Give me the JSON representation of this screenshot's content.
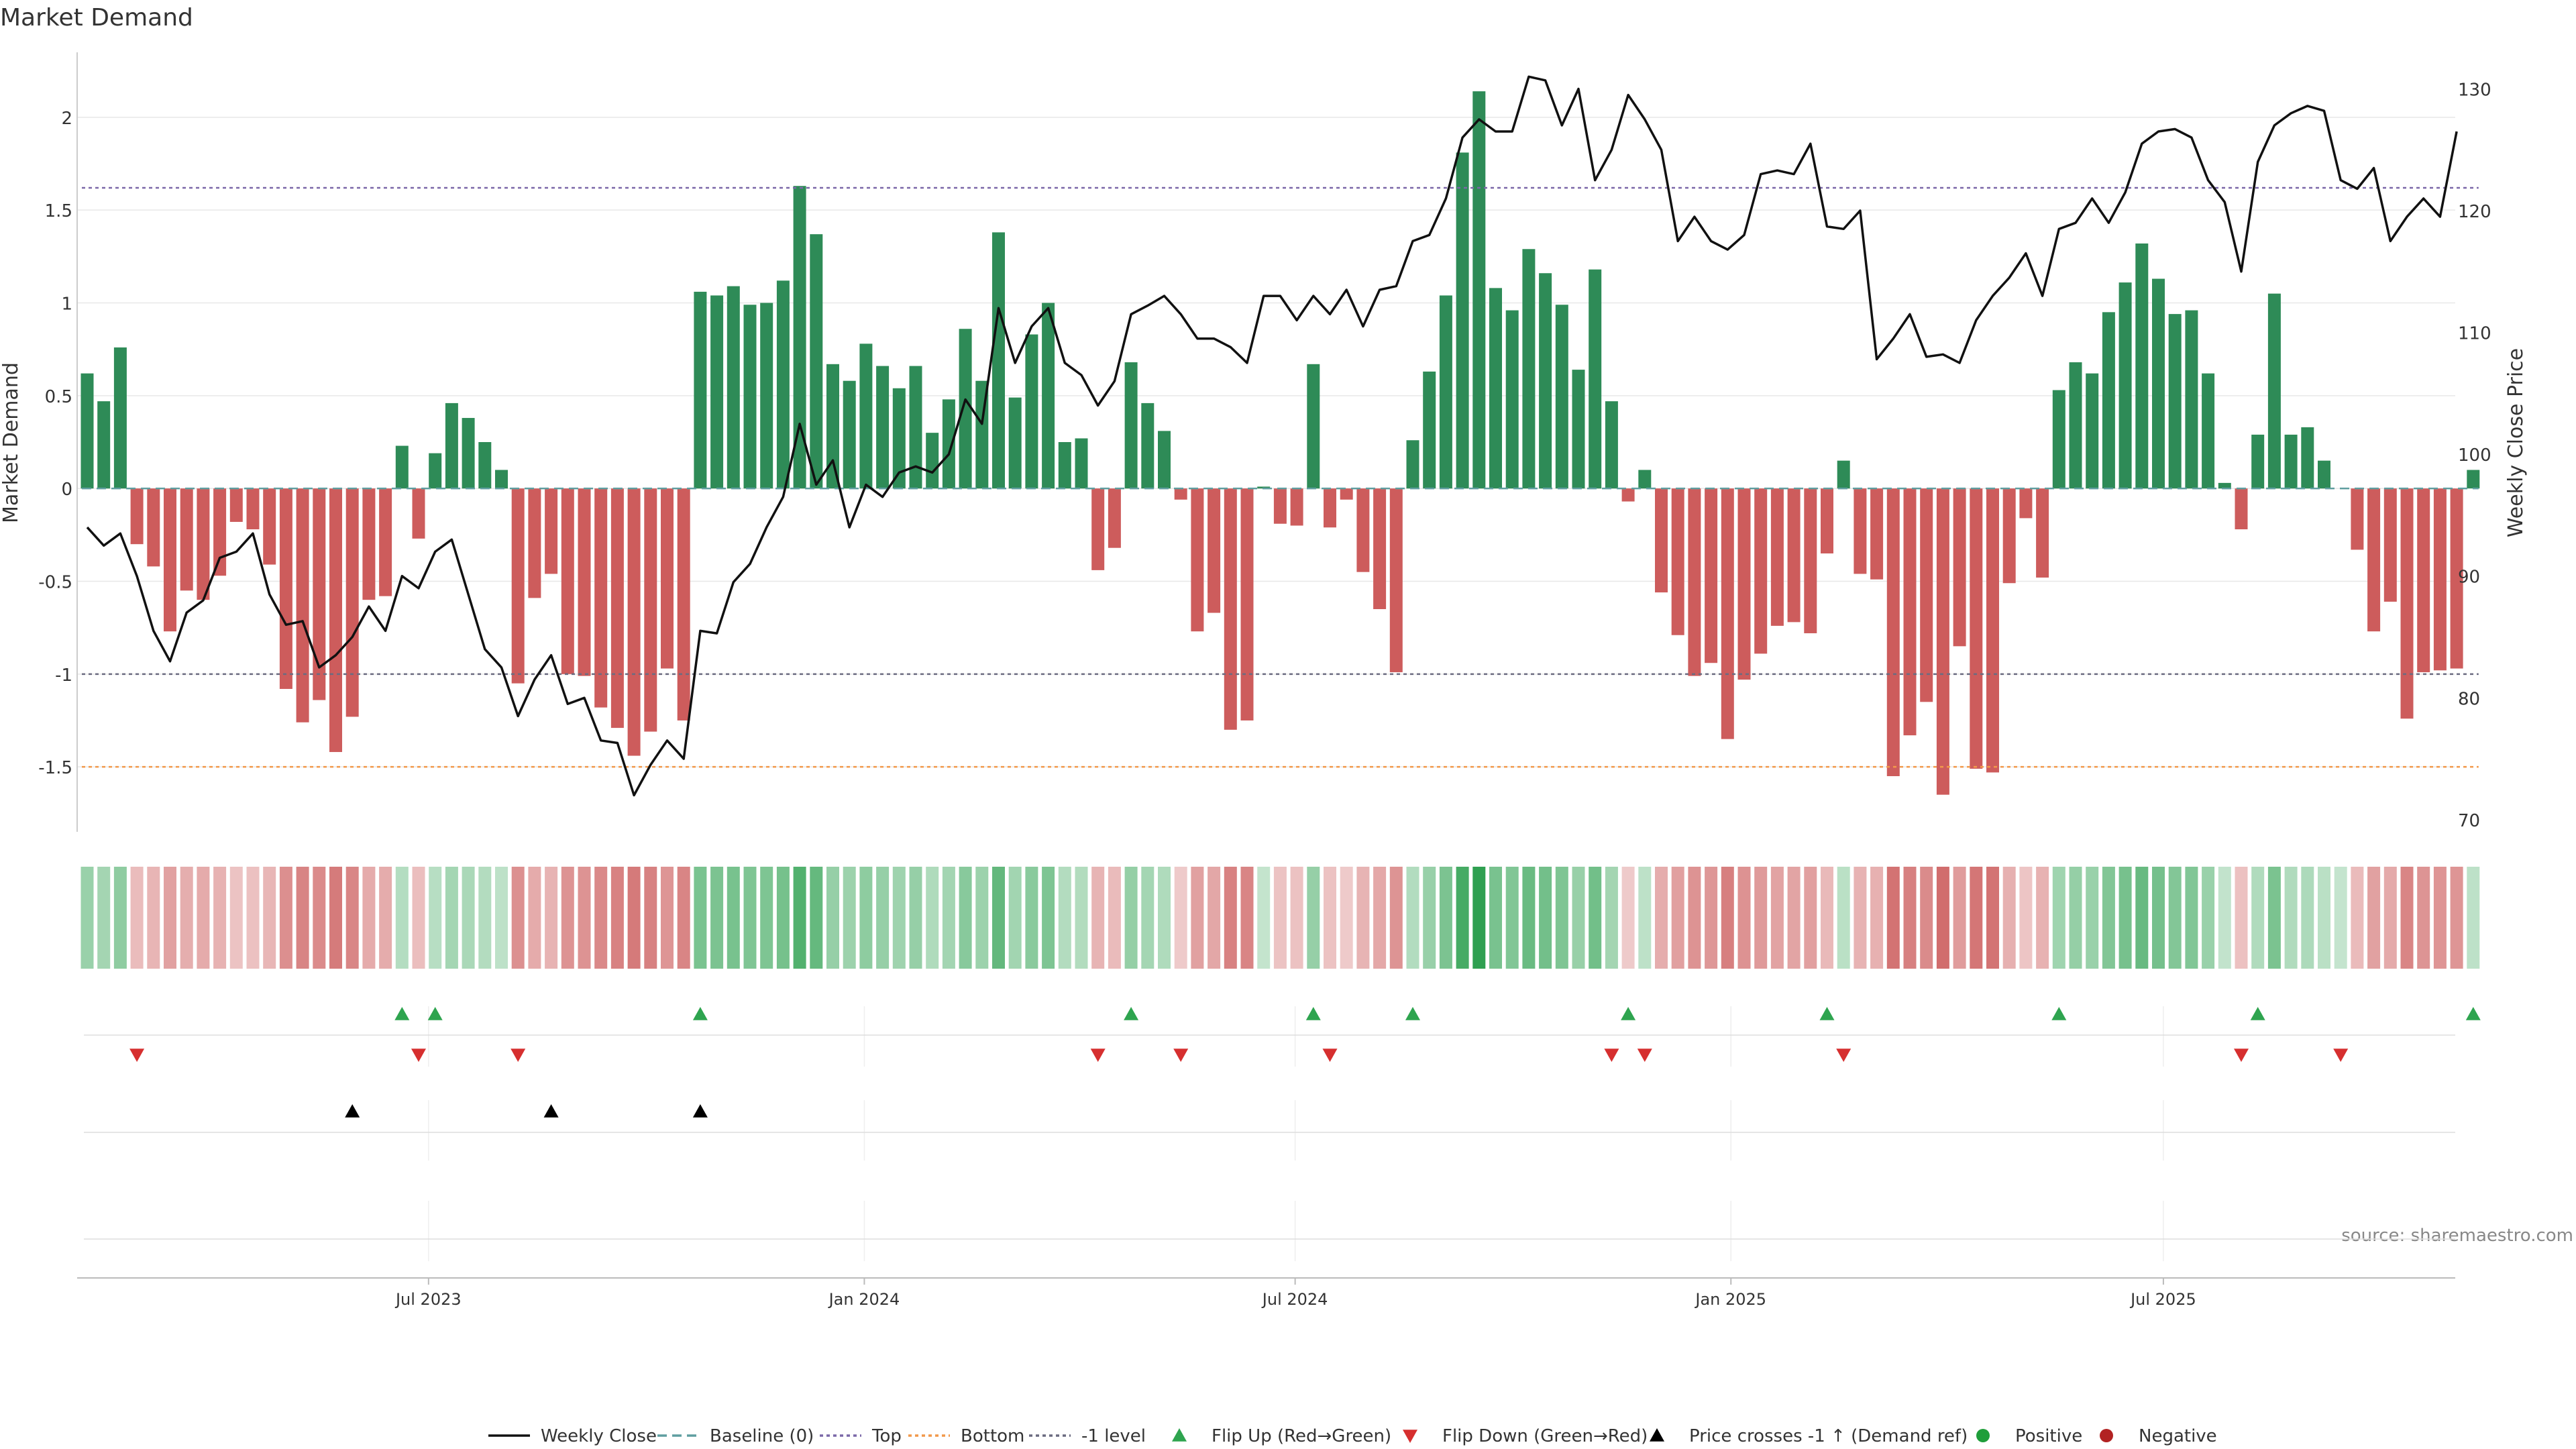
{
  "chart_data": {
    "type": "bar",
    "title": "Market Demand",
    "ylabel": "Market Demand",
    "y2label": "Weekly Close Price",
    "ylim": [
      -1.85,
      2.35
    ],
    "y2lim": [
      69,
      133
    ],
    "yticks": [
      "2",
      "1.5",
      "1",
      "0.5",
      "0",
      "-0.5",
      "-1",
      "-1.5"
    ],
    "y2ticks": [
      "130",
      "120",
      "110",
      "100",
      "90",
      "80",
      "70"
    ],
    "reference_lines": {
      "top": 1.62,
      "minus_one": -1.0,
      "bottom": -1.5,
      "baseline": 0
    },
    "x_start": "2023-03-05",
    "x_tick_labels": [
      "Jul 2023",
      "Jan 2024",
      "Jul 2024",
      "Jan 2025",
      "Jul 2025"
    ],
    "x_tick_weeks": [
      20.6,
      46.9,
      72.9,
      99.2,
      125.3
    ],
    "demand": [
      0.62,
      0.47,
      0.76,
      -0.3,
      -0.42,
      -0.77,
      -0.55,
      -0.6,
      -0.47,
      -0.18,
      -0.22,
      -0.41,
      -1.08,
      -1.26,
      -1.14,
      -1.42,
      -1.23,
      -0.6,
      -0.58,
      0.23,
      -0.27,
      0.19,
      0.46,
      0.38,
      0.25,
      0.1,
      -1.05,
      -0.59,
      -0.46,
      -1.0,
      -1.01,
      -1.18,
      -1.29,
      -1.44,
      -1.31,
      -0.97,
      -1.25,
      1.06,
      1.04,
      1.09,
      0.99,
      1.0,
      1.12,
      1.63,
      1.37,
      0.67,
      0.58,
      0.78,
      0.66,
      0.54,
      0.66,
      0.3,
      0.48,
      0.86,
      0.58,
      1.38,
      0.49,
      0.83,
      1.0,
      0.25,
      0.27,
      -0.44,
      -0.32,
      0.68,
      0.46,
      0.31,
      -0.06,
      -0.77,
      -0.67,
      -1.3,
      -1.25,
      0.01,
      -0.19,
      -0.2,
      0.67,
      -0.21,
      -0.06,
      -0.45,
      -0.65,
      -0.99,
      0.26,
      0.63,
      1.04,
      1.81,
      2.14,
      1.08,
      0.96,
      1.29,
      1.16,
      0.99,
      0.64,
      1.18,
      0.47,
      -0.07,
      0.1,
      -0.56,
      -0.79,
      -1.01,
      -0.94,
      -1.35,
      -1.03,
      -0.89,
      -0.74,
      -0.72,
      -0.78,
      -0.35,
      0.15,
      -0.46,
      -0.49,
      -1.55,
      -1.33,
      -1.15,
      -1.65,
      -0.85,
      -1.51,
      -1.53,
      -0.51,
      -0.16,
      -0.48,
      0.53,
      0.68,
      0.62,
      0.95,
      1.11,
      1.32,
      1.13,
      0.94,
      0.96,
      0.62,
      0.03,
      -0.22,
      0.29,
      1.05,
      0.29,
      0.33,
      0.15,
      0,
      -0.33,
      -0.77,
      -0.61,
      -1.24,
      -0.99,
      -0.98,
      -0.97,
      0.1
    ],
    "weekly_close": [
      94,
      92.5,
      93.5,
      90,
      85.5,
      83,
      87,
      88,
      91.5,
      92,
      93.5,
      88.5,
      86,
      86.3,
      82.5,
      83.5,
      85,
      87.5,
      85.5,
      90,
      89,
      92,
      93,
      88.5,
      84,
      82.5,
      78.5,
      81.5,
      83.5,
      79.5,
      80,
      76.5,
      76.3,
      72,
      74.5,
      76.5,
      75,
      85.5,
      85.3,
      89.5,
      91,
      94,
      96.5,
      102.5,
      97.5,
      99.5,
      94,
      97.5,
      96.5,
      98.5,
      99,
      98.5,
      100,
      104.5,
      102.5,
      112,
      107.5,
      110.5,
      112,
      107.5,
      106.5,
      104,
      106,
      111.5,
      112.2,
      113,
      111.5,
      109.5,
      109.5,
      108.8,
      107.5,
      113,
      113,
      111,
      113,
      111.5,
      113.5,
      110.5,
      113.5,
      113.8,
      117.5,
      118,
      121,
      126,
      127.5,
      126.5,
      126.5,
      131,
      130.7,
      127,
      130,
      122.5,
      125,
      129.5,
      127.5,
      125,
      117.5,
      119.5,
      117.5,
      116.8,
      118,
      123,
      123.3,
      123,
      125.5,
      118.7,
      118.5,
      120,
      107.8,
      109.5,
      111.5,
      108,
      108.2,
      107.5,
      111,
      113,
      114.5,
      116.5,
      113,
      118.5,
      119,
      121,
      119,
      121.5,
      125.5,
      126.5,
      126.7,
      126,
      122.5,
      120.7,
      115,
      124,
      127,
      128,
      128.6,
      128.2,
      122.5,
      121.8,
      123.5,
      117.5,
      119.5,
      121,
      119.5,
      126.5
    ],
    "flip_up_weeks": [
      19,
      21,
      37,
      63,
      74,
      80,
      93,
      105,
      119,
      131,
      144
    ],
    "flip_down_weeks": [
      3,
      20,
      26,
      61,
      66,
      75,
      92,
      94,
      106,
      130,
      136
    ],
    "price_cross_weeks": [
      16,
      28,
      37
    ],
    "legend": [
      "Weekly Close",
      "Baseline (0)",
      "Top",
      "Bottom",
      "-1 level",
      "Flip Up (Red→Green)",
      "Flip Down (Green→Red)",
      "Price crosses -1 ↑ (Demand ref)",
      "Positive",
      "Negative"
    ],
    "source": "source: sharemaestro.com",
    "colors": {
      "positive": "#2e8b57",
      "negative": "#cd5c5c",
      "price": "#111111",
      "baseline": "#5f9ea0",
      "top": "#7b68a8",
      "bottom": "#f2994a",
      "minus_one": "#6b6b80",
      "flip_up": "#2ea44f",
      "flip_down": "#d62f2f",
      "cross": "#000000",
      "positive_dot": "#1f9e3a",
      "negative_dot": "#b22222",
      "grid": "#e8e8e8",
      "text": "#333333"
    }
  }
}
